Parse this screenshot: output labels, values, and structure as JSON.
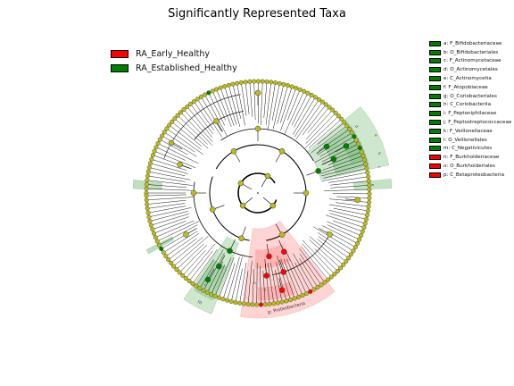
{
  "title": "Significantly Represented Taxa",
  "groups": [
    {
      "label": "RA_Early_Healthy",
      "color": "#ff0000"
    },
    {
      "label": "RA_Established_Healthy",
      "color": "#008000"
    }
  ],
  "taxa_legend": [
    {
      "label": "a: F_Bifidobacteriaceae",
      "color": "#008000"
    },
    {
      "label": "b: O_Bifidobacteriales",
      "color": "#008000"
    },
    {
      "label": "c: F_Actinomycetaceae",
      "color": "#008000"
    },
    {
      "label": "d: O_Actinomycetales",
      "color": "#008000"
    },
    {
      "label": "e: C_Actinomycetia",
      "color": "#008000"
    },
    {
      "label": "f: F_Atopobiaceae",
      "color": "#008000"
    },
    {
      "label": "g: O_Coriobacteriales",
      "color": "#008000"
    },
    {
      "label": "h: C_Coriobacteriia",
      "color": "#008000"
    },
    {
      "label": "i: F_Peptoniphilaceae",
      "color": "#008000"
    },
    {
      "label": "j: F_Peptostreptococcaceae",
      "color": "#008000"
    },
    {
      "label": "k: F_Veillonellaceae",
      "color": "#008000"
    },
    {
      "label": "l: O_Veillonellales",
      "color": "#008000"
    },
    {
      "label": "m: C_Negativicutes",
      "color": "#008000"
    },
    {
      "label": "n: F_Burkholderiaceae",
      "color": "#ff0000"
    },
    {
      "label": "o: O_Burkholderiales",
      "color": "#ff0000"
    },
    {
      "label": "p: C_Betaproteobacteria",
      "color": "#ff0000"
    }
  ],
  "colors": {
    "node_default": "#bcbc1e",
    "enriched_early": "#ff0000",
    "enriched_established": "#008000",
    "shade_early": "#ff9999",
    "shade_established": "#7fbf7f"
  },
  "clade_labels": {
    "proteobacteria": "p: Proteobacteria",
    "firmicutes_left": "m",
    "lower_red": "o",
    "lower_red2": "n",
    "right_a": "a",
    "right_b": "b",
    "right_c": "c",
    "right_d": "d",
    "right_e": "e",
    "left_f": "f",
    "left_g": "g",
    "left_h": "h",
    "left_i": "i",
    "left_j": "j"
  }
}
